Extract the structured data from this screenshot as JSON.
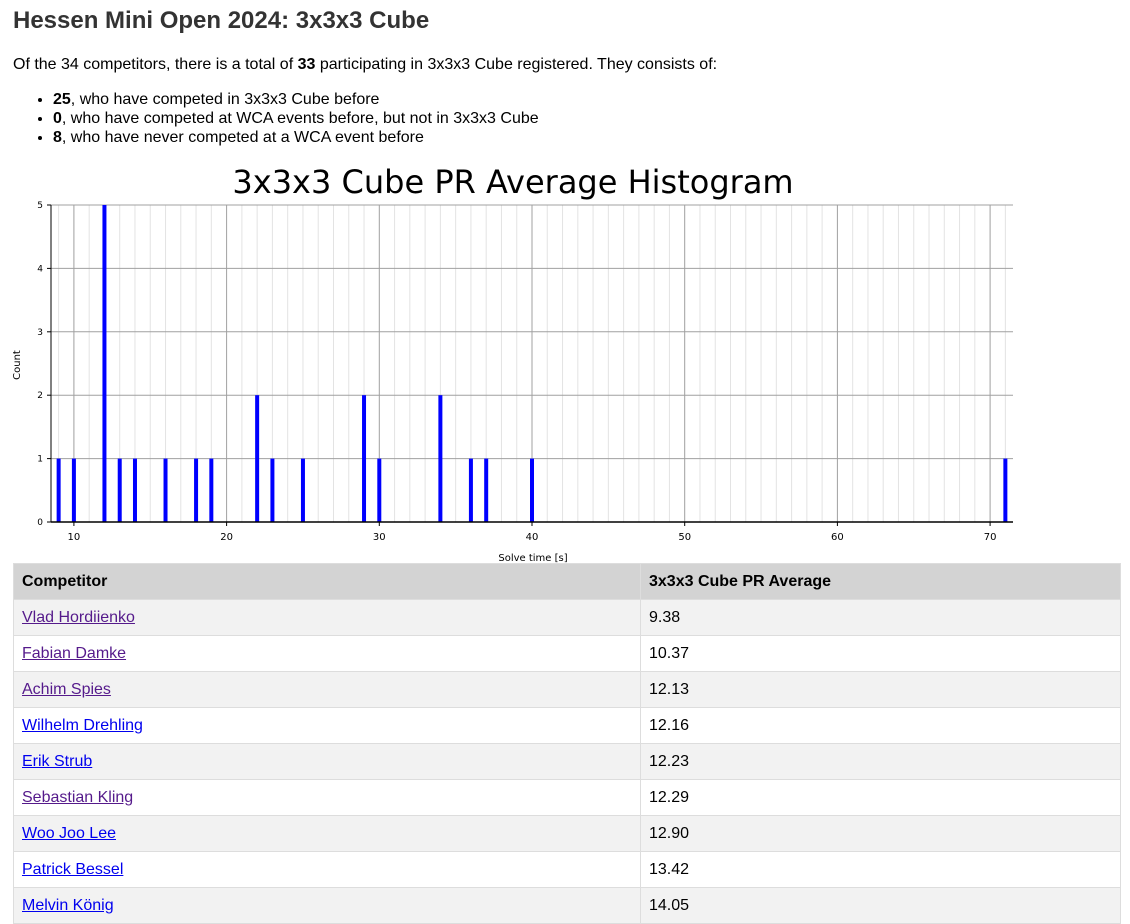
{
  "page": {
    "title": "Hessen Mini Open 2024: 3x3x3 Cube",
    "summary": {
      "prefix": "Of the 34 competitors, there is a total of ",
      "total": "33",
      "suffix": " participating in 3x3x3 Cube registered. They consists of:"
    },
    "breakdown": [
      {
        "count": "25",
        "text": ", who have competed in 3x3x3 Cube before"
      },
      {
        "count": "0",
        "text": ", who have competed at WCA events before, but not in 3x3x3 Cube"
      },
      {
        "count": "8",
        "text": ", who have never competed at a WCA event before"
      }
    ]
  },
  "chart_data": {
    "type": "bar",
    "title": "3x3x3 Cube PR Average Histogram",
    "xlabel": "Solve time [s]",
    "ylabel": "Count",
    "xlim": [
      8.5,
      71.5
    ],
    "ylim": [
      0,
      5
    ],
    "x_ticks": [
      10,
      20,
      30,
      40,
      50,
      60,
      70
    ],
    "y_ticks": [
      0,
      1,
      2,
      3,
      4,
      5
    ],
    "grid": true,
    "bar_color": "#0000ff",
    "x": [
      9,
      10,
      12,
      13,
      14,
      16,
      18,
      19,
      22,
      23,
      25,
      29,
      30,
      34,
      36,
      37,
      40,
      71
    ],
    "values": [
      1,
      1,
      5,
      1,
      1,
      1,
      1,
      1,
      2,
      1,
      1,
      2,
      1,
      2,
      1,
      1,
      1,
      1
    ]
  },
  "table": {
    "headers": [
      "Competitor",
      "3x3x3 Cube PR Average"
    ],
    "rows": [
      {
        "name": "Vlad Hordiienko",
        "value": "9.38",
        "visited": true
      },
      {
        "name": "Fabian Damke",
        "value": "10.37",
        "visited": true
      },
      {
        "name": "Achim Spies",
        "value": "12.13",
        "visited": true
      },
      {
        "name": "Wilhelm Drehling",
        "value": "12.16",
        "visited": false
      },
      {
        "name": "Erik Strub",
        "value": "12.23",
        "visited": false
      },
      {
        "name": "Sebastian Kling",
        "value": "12.29",
        "visited": true
      },
      {
        "name": "Woo Joo Lee",
        "value": "12.90",
        "visited": false
      },
      {
        "name": "Patrick Bessel",
        "value": "13.42",
        "visited": false
      },
      {
        "name": "Melvin König",
        "value": "14.05",
        "visited": false
      }
    ]
  },
  "colors": {
    "link": "#0000ee",
    "visited_link": "#551a8b",
    "header_bg": "#d3d3d3",
    "stripe": "#f2f2f2"
  }
}
